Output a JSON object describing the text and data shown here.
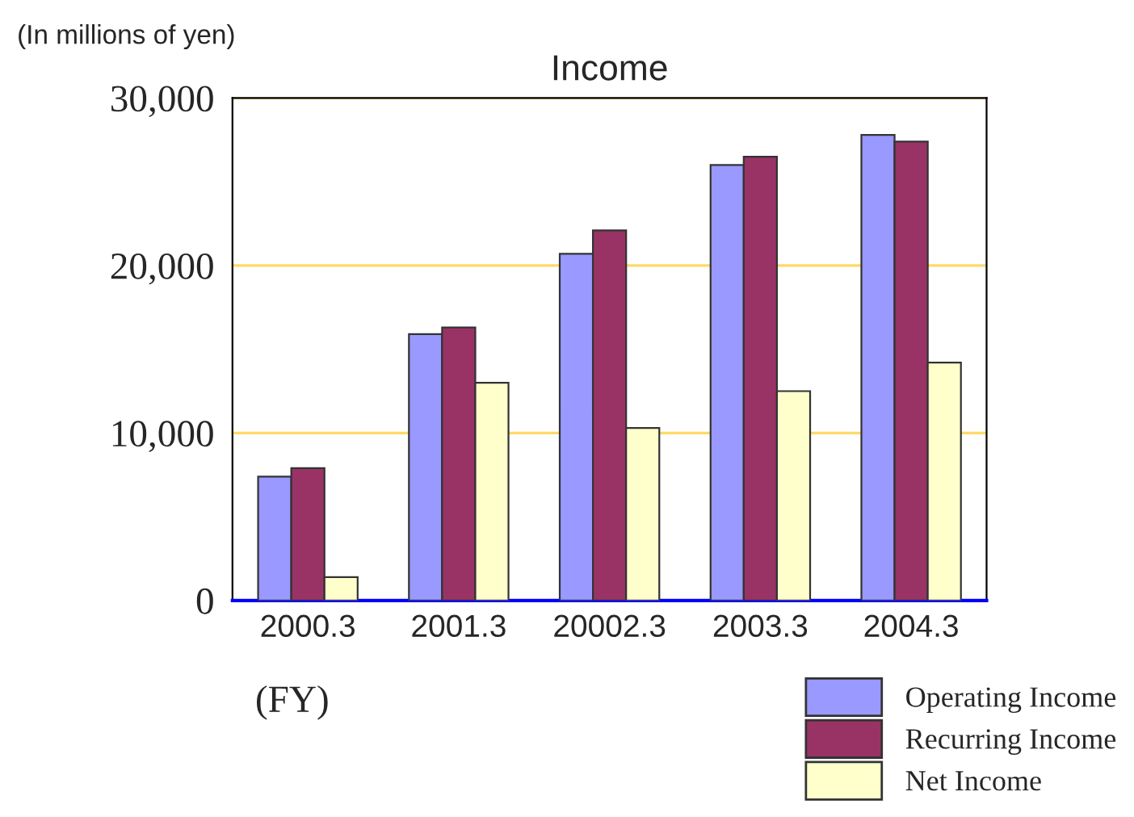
{
  "chart_data": {
    "type": "bar",
    "title": "Income",
    "xlabel": "(FY)",
    "annotations": [
      "(In millions of yen)"
    ],
    "categories": [
      "2000.3",
      "2001.3",
      "20002.3",
      "2003.3",
      "2004.3"
    ],
    "series": [
      {
        "name": "Operating Income",
        "color": "#9999ff",
        "values": [
          7400,
          15900,
          20700,
          26000,
          27800
        ]
      },
      {
        "name": "Recurring Income",
        "color": "#993366",
        "values": [
          7900,
          16300,
          22100,
          26500,
          27400
        ]
      },
      {
        "name": "Net Income",
        "color": "#ffffcc",
        "values": [
          1400,
          13000,
          10300,
          12500,
          14200
        ]
      }
    ],
    "ylim": [
      0,
      30000
    ],
    "yticks": [
      {
        "value": 0,
        "label": "0"
      },
      {
        "value": 10000,
        "label": "10,000"
      },
      {
        "value": 20000,
        "label": "20,000"
      },
      {
        "value": 30000,
        "label": "30,000"
      }
    ],
    "grid": "y",
    "legend": "bottom right"
  }
}
